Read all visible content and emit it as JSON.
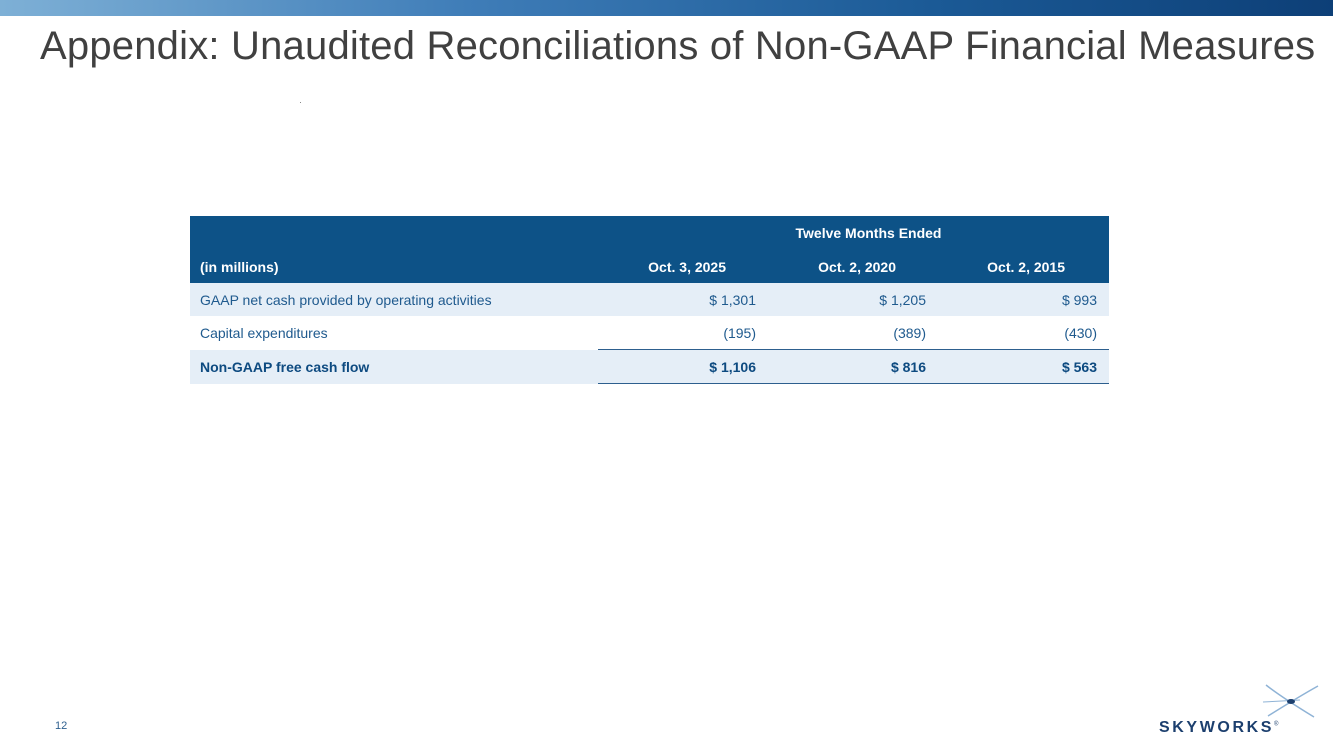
{
  "slide": {
    "title": "Appendix: Unaudited Reconciliations of Non-GAAP Financial Measures",
    "page_number": "12"
  },
  "table": {
    "group_header": "Twelve Months Ended",
    "label_header": "(in millions)",
    "columns": [
      "Oct. 3, 2025",
      "Oct. 2, 2020",
      "Oct. 2, 2015"
    ],
    "rows": [
      {
        "label": "GAAP net cash provided by operating activities",
        "values": [
          "$ 1,301",
          "$ 1,205",
          "$ 993"
        ]
      },
      {
        "label": "Capital expenditures",
        "values": [
          "(195)",
          "(389)",
          "(430)"
        ]
      },
      {
        "label": "Non-GAAP free cash flow",
        "values": [
          "$ 1,106",
          "$ 816",
          "$ 563"
        ]
      }
    ]
  },
  "logo": {
    "text": "SKYWORKS",
    "mark": "®"
  },
  "colors": {
    "header_bg": "#0d5287",
    "row_shade": "#e5eef7",
    "text_blue": "#1f5a8e",
    "title_gray": "#404040"
  }
}
